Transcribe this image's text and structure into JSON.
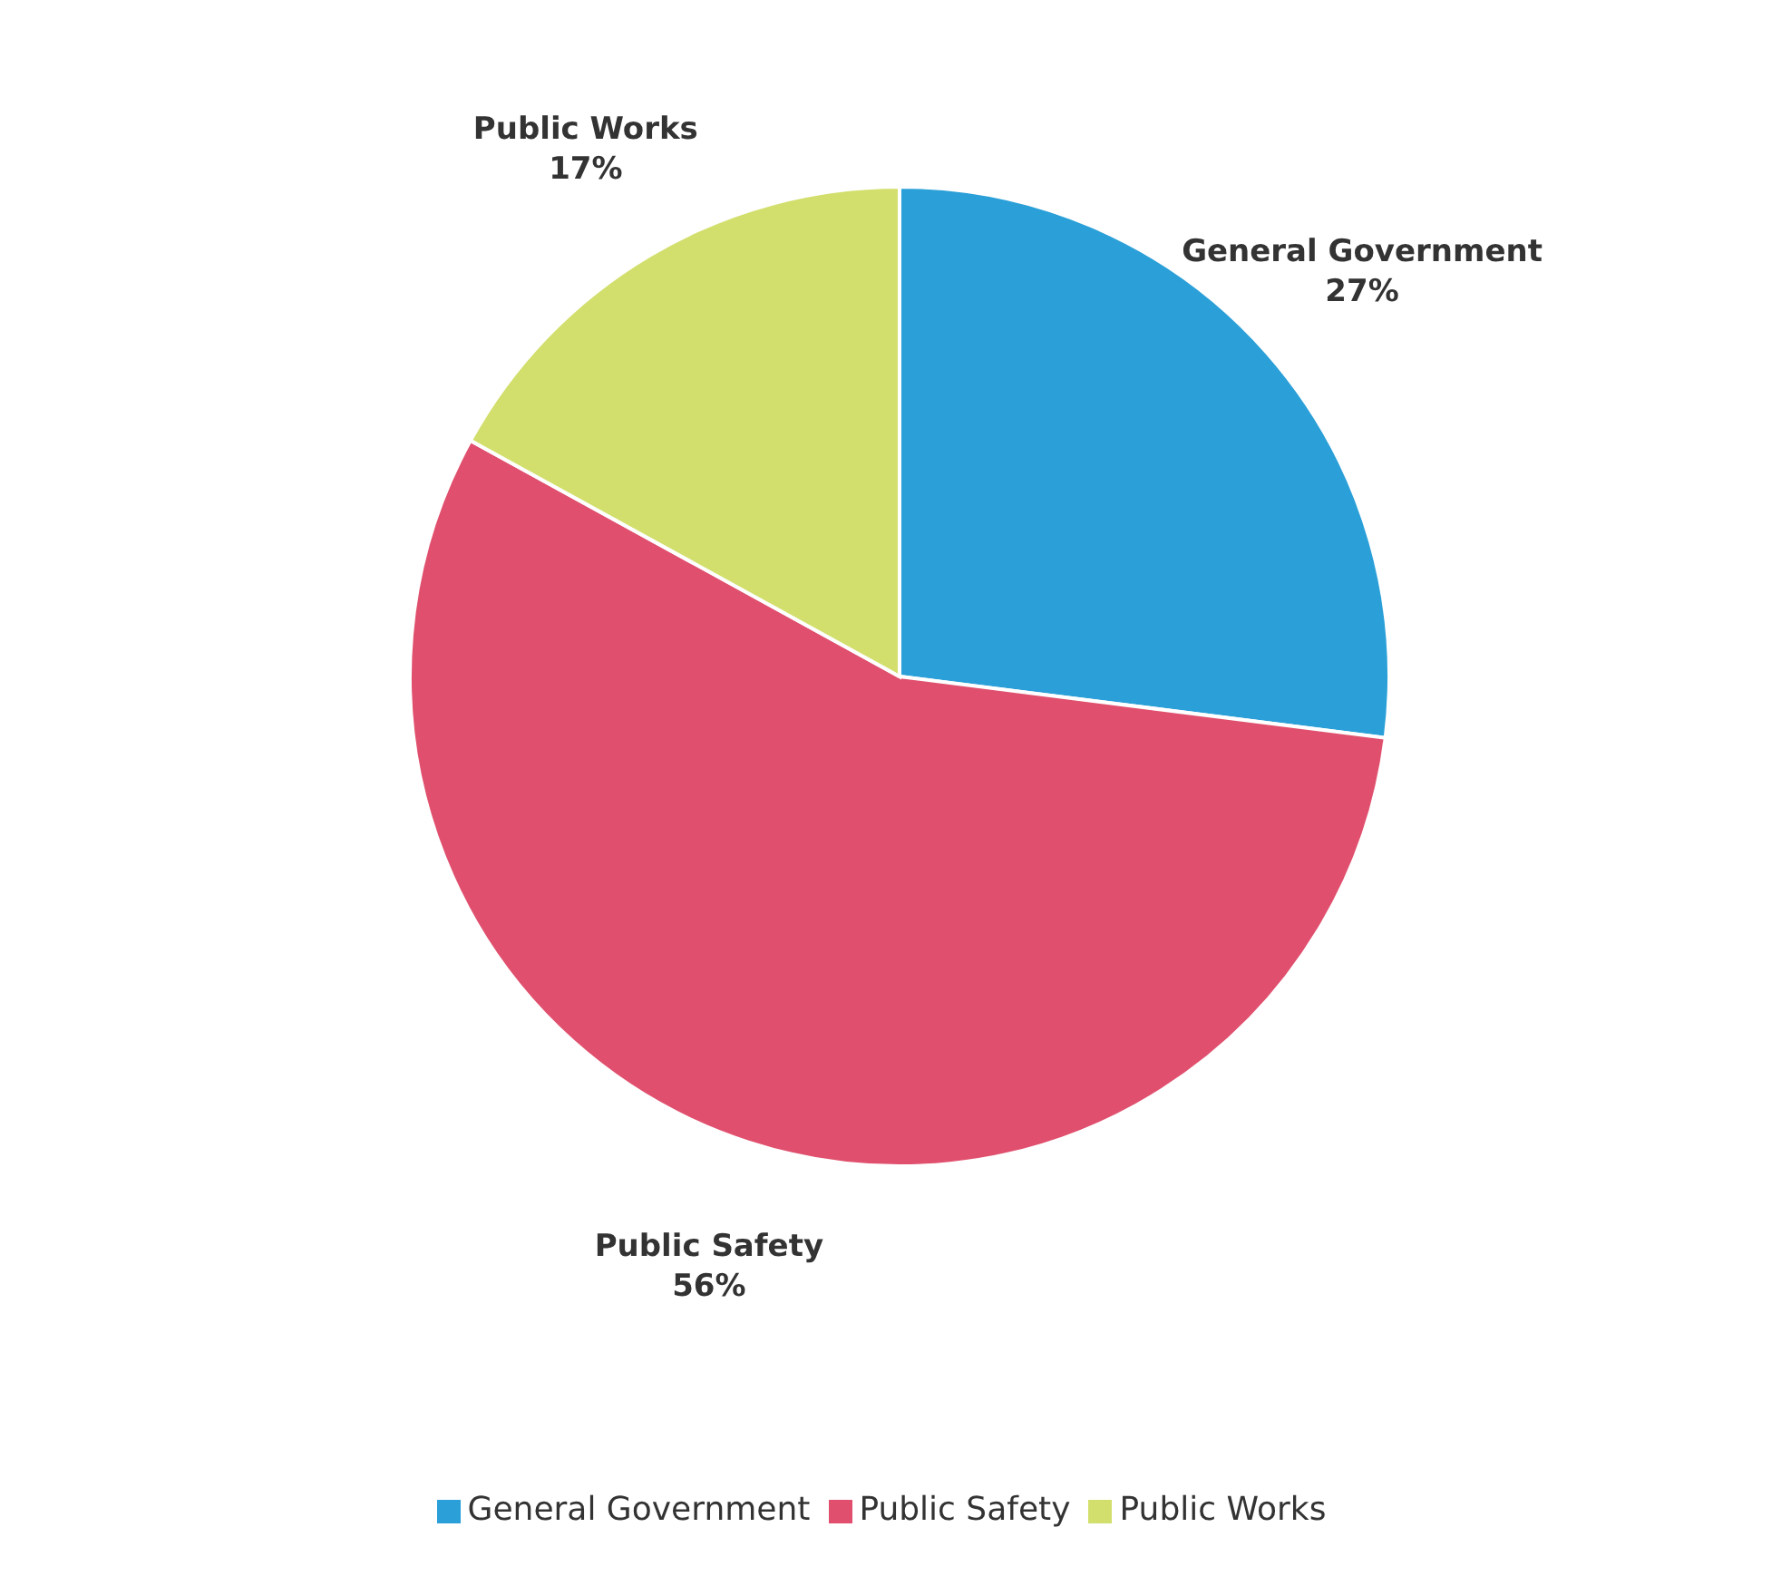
{
  "chart_data": {
    "type": "pie",
    "categories": [
      "General Government",
      "Public Safety",
      "Public Works"
    ],
    "values": [
      27,
      56,
      17
    ],
    "colors": [
      "#2a9fd8",
      "#e0506e",
      "#d2df6c"
    ],
    "value_labels": [
      "27%",
      "56%",
      "17%"
    ],
    "legend": "bottom"
  }
}
